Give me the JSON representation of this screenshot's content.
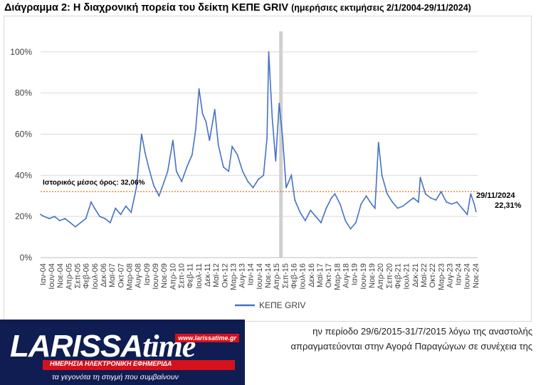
{
  "title": {
    "main": "Διάγραμμα 2: Η διαχρονική πορεία του δείκτη ΚΕΠΕ GRIV",
    "sub": "(ημερήσιες εκτιμήσεις 2/1/2004-29/11/2024)"
  },
  "chart_data": {
    "type": "line",
    "x_tick_labels": [
      "Ιαν-04",
      "Ιουν-04",
      "Νοε-04",
      "Απρ-05",
      "Σεπ-05",
      "Φεβ-06",
      "Ιουλ-06",
      "Δεκ-06",
      "Μαϊ-07",
      "Οκτ-07",
      "Μαρ-08",
      "Αυγ-08",
      "Ιαν-09",
      "Ιουν-09",
      "Νοε-09",
      "Απρ-10",
      "Σεπ-10",
      "Φεβ-11",
      "Ιουλ-11",
      "Δεκ-11",
      "Μαϊ-12",
      "Οκτ-12",
      "Μαρ-13",
      "Αυγ-13",
      "Ιαν-14",
      "Ιουν-14",
      "Νοε-14",
      "Απρ-15",
      "Σεπ-15",
      "Φεβ-16",
      "Ιουλ-16",
      "Δεκ-16",
      "Μαϊ-17",
      "Οκτ-17",
      "Μαρ-18",
      "Αυγ-18",
      "Ιαν-19",
      "Ιουν-19",
      "Νοε-19",
      "Απρ-20",
      "Σεπ-20",
      "Φεβ-21",
      "Ιουλ-21",
      "Δεκ-21",
      "Μαϊ-22",
      "Οκτ-22",
      "Μαρ-23",
      "Αυγ-23",
      "Ιαν-24",
      "Ιουν-24",
      "Νοε-24"
    ],
    "y_tick_labels": [
      "0%",
      "20%",
      "40%",
      "60%",
      "80%",
      "100%"
    ],
    "ylim": [
      0,
      110
    ],
    "grid": "horizontal",
    "legend_position": "bottom",
    "series": [
      {
        "name": "ΚΕΠΕ GRIV",
        "color": "#4472c4",
        "unit": "percent",
        "points": [
          [
            "2004-01",
            21
          ],
          [
            "2004-03",
            20
          ],
          [
            "2004-06",
            19
          ],
          [
            "2004-09",
            20
          ],
          [
            "2004-12",
            18
          ],
          [
            "2005-03",
            19
          ],
          [
            "2005-06",
            17
          ],
          [
            "2005-09",
            15
          ],
          [
            "2005-12",
            17
          ],
          [
            "2006-03",
            19
          ],
          [
            "2006-06",
            27
          ],
          [
            "2006-08",
            24
          ],
          [
            "2006-11",
            20
          ],
          [
            "2007-02",
            19
          ],
          [
            "2007-05",
            17
          ],
          [
            "2007-08",
            24
          ],
          [
            "2007-11",
            21
          ],
          [
            "2008-02",
            25
          ],
          [
            "2008-05",
            22
          ],
          [
            "2008-08",
            34
          ],
          [
            "2008-11",
            60
          ],
          [
            "2009-01",
            51
          ],
          [
            "2009-03",
            44
          ],
          [
            "2009-06",
            35
          ],
          [
            "2009-09",
            30
          ],
          [
            "2009-12",
            37
          ],
          [
            "2010-02",
            42
          ],
          [
            "2010-05",
            57
          ],
          [
            "2010-07",
            42
          ],
          [
            "2010-10",
            37
          ],
          [
            "2011-01",
            44
          ],
          [
            "2011-04",
            50
          ],
          [
            "2011-06",
            62
          ],
          [
            "2011-08",
            82
          ],
          [
            "2011-10",
            70
          ],
          [
            "2011-12",
            66
          ],
          [
            "2012-02",
            57
          ],
          [
            "2012-05",
            72
          ],
          [
            "2012-07",
            55
          ],
          [
            "2012-10",
            44
          ],
          [
            "2013-01",
            42
          ],
          [
            "2013-03",
            54
          ],
          [
            "2013-06",
            50
          ],
          [
            "2013-09",
            42
          ],
          [
            "2013-12",
            37
          ],
          [
            "2014-03",
            34
          ],
          [
            "2014-06",
            38
          ],
          [
            "2014-09",
            40
          ],
          [
            "2014-11",
            58
          ],
          [
            "2014-12",
            100
          ],
          [
            "2015-02",
            68
          ],
          [
            "2015-04",
            47
          ],
          [
            "2015-06",
            75
          ],
          [
            "2015-08",
            58
          ],
          [
            "2015-10",
            34
          ],
          [
            "2016-01",
            40
          ],
          [
            "2016-03",
            28
          ],
          [
            "2016-06",
            22
          ],
          [
            "2016-09",
            18
          ],
          [
            "2016-12",
            23
          ],
          [
            "2017-03",
            20
          ],
          [
            "2017-06",
            17
          ],
          [
            "2017-09",
            24
          ],
          [
            "2017-12",
            29
          ],
          [
            "2018-02",
            31
          ],
          [
            "2018-05",
            26
          ],
          [
            "2018-08",
            18
          ],
          [
            "2018-11",
            14
          ],
          [
            "2019-02",
            17
          ],
          [
            "2019-05",
            26
          ],
          [
            "2019-08",
            30
          ],
          [
            "2019-11",
            26
          ],
          [
            "2020-01",
            24
          ],
          [
            "2020-03",
            56
          ],
          [
            "2020-05",
            40
          ],
          [
            "2020-08",
            31
          ],
          [
            "2020-11",
            27
          ],
          [
            "2021-02",
            24
          ],
          [
            "2021-05",
            25
          ],
          [
            "2021-08",
            27
          ],
          [
            "2021-11",
            29
          ],
          [
            "2022-02",
            27
          ],
          [
            "2022-03",
            39
          ],
          [
            "2022-06",
            31
          ],
          [
            "2022-09",
            29
          ],
          [
            "2022-12",
            28
          ],
          [
            "2023-03",
            32
          ],
          [
            "2023-06",
            27
          ],
          [
            "2023-09",
            26
          ],
          [
            "2023-12",
            27
          ],
          [
            "2024-03",
            24
          ],
          [
            "2024-06",
            21
          ],
          [
            "2024-08",
            31
          ],
          [
            "2024-10",
            26
          ],
          [
            "2024-11",
            22.31
          ]
        ]
      }
    ],
    "reference_line": {
      "label": "Ιστορικός μέσος όρος: 32,06%",
      "value": 32.06,
      "color": "#ed7d31"
    },
    "shaded_period": {
      "start": "2015-06",
      "end": "2015-08",
      "color": "#d0d0d0"
    },
    "end_annotation": {
      "date_label": "29/11/2024",
      "value_label": "22,31%"
    }
  },
  "body_text": {
    "line1": "ην περίοδο 29/6/2015-31/7/2015 λόγω της αναστολής",
    "line2": "απραγματεύονται στην Αγορά Παραγώγων σε συνέχεια της"
  },
  "logo": {
    "brand_left": "LARISSA",
    "brand_right": "time",
    "url": "www.larissatime.gr",
    "tagline": "ΗΜΕΡΗΣΙΑ ΗΛΕΚΤΡΟΝΙΚΗ ΕΦΗΜΕΡΙΔΑ",
    "slogan": "τα γεγονότα τη στιγμή που συμβαίνουν"
  }
}
